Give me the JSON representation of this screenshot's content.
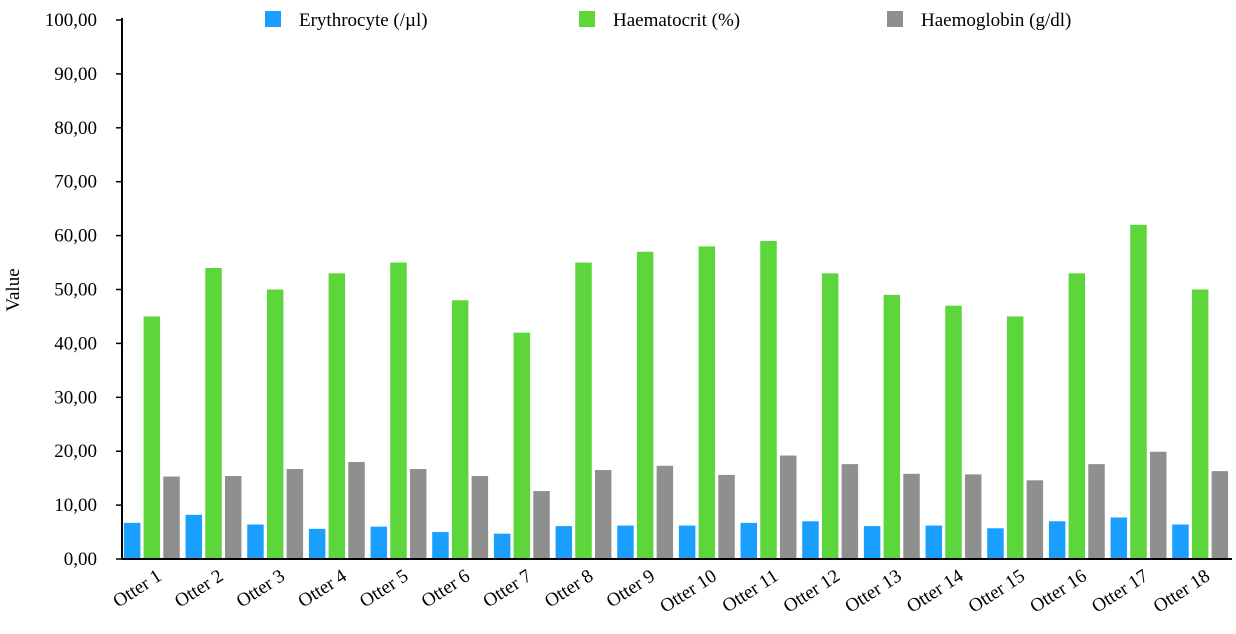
{
  "chart_data": {
    "type": "bar",
    "ylabel": "Value",
    "xlabel": "",
    "ylim": [
      0,
      100
    ],
    "y_ticks": [
      "0,00",
      "10,00",
      "20,00",
      "30,00",
      "40,00",
      "50,00",
      "60,00",
      "70,00",
      "80,00",
      "90,00",
      "100,00"
    ],
    "grid": false,
    "legend_position": "top",
    "categories": [
      "Otter 1",
      "Otter 2",
      "Otter 3",
      "Otter 4",
      "Otter 5",
      "Otter 6",
      "Otter 7",
      "Otter 8",
      "Otter 9",
      "Otter 10",
      "Otter 11",
      "Otter 12",
      "Otter 13",
      "Otter 14",
      "Otter 15",
      "Otter 16",
      "Otter 17",
      "Otter 18"
    ],
    "series": [
      {
        "name": "Erythrocyte (/µl)",
        "color": "#1a9fff",
        "values": [
          6.7,
          8.2,
          6.4,
          5.6,
          6.0,
          5.0,
          4.7,
          6.1,
          6.2,
          6.2,
          6.7,
          7.0,
          6.1,
          6.2,
          5.7,
          7.0,
          7.7,
          6.4
        ]
      },
      {
        "name": "Haematocrit  (%)",
        "color": "#5cd63a",
        "values": [
          45,
          54,
          50,
          53,
          55,
          48,
          42,
          55,
          57,
          58,
          59,
          53,
          49,
          47,
          45,
          53,
          62,
          50
        ]
      },
      {
        "name": "Haemoglobin (g/dl)",
        "color": "#8f8f8f",
        "values": [
          15.3,
          15.4,
          16.7,
          18.0,
          16.7,
          15.4,
          12.6,
          16.5,
          17.3,
          15.6,
          19.2,
          17.6,
          15.8,
          15.7,
          14.6,
          17.6,
          19.9,
          16.3
        ]
      }
    ]
  }
}
